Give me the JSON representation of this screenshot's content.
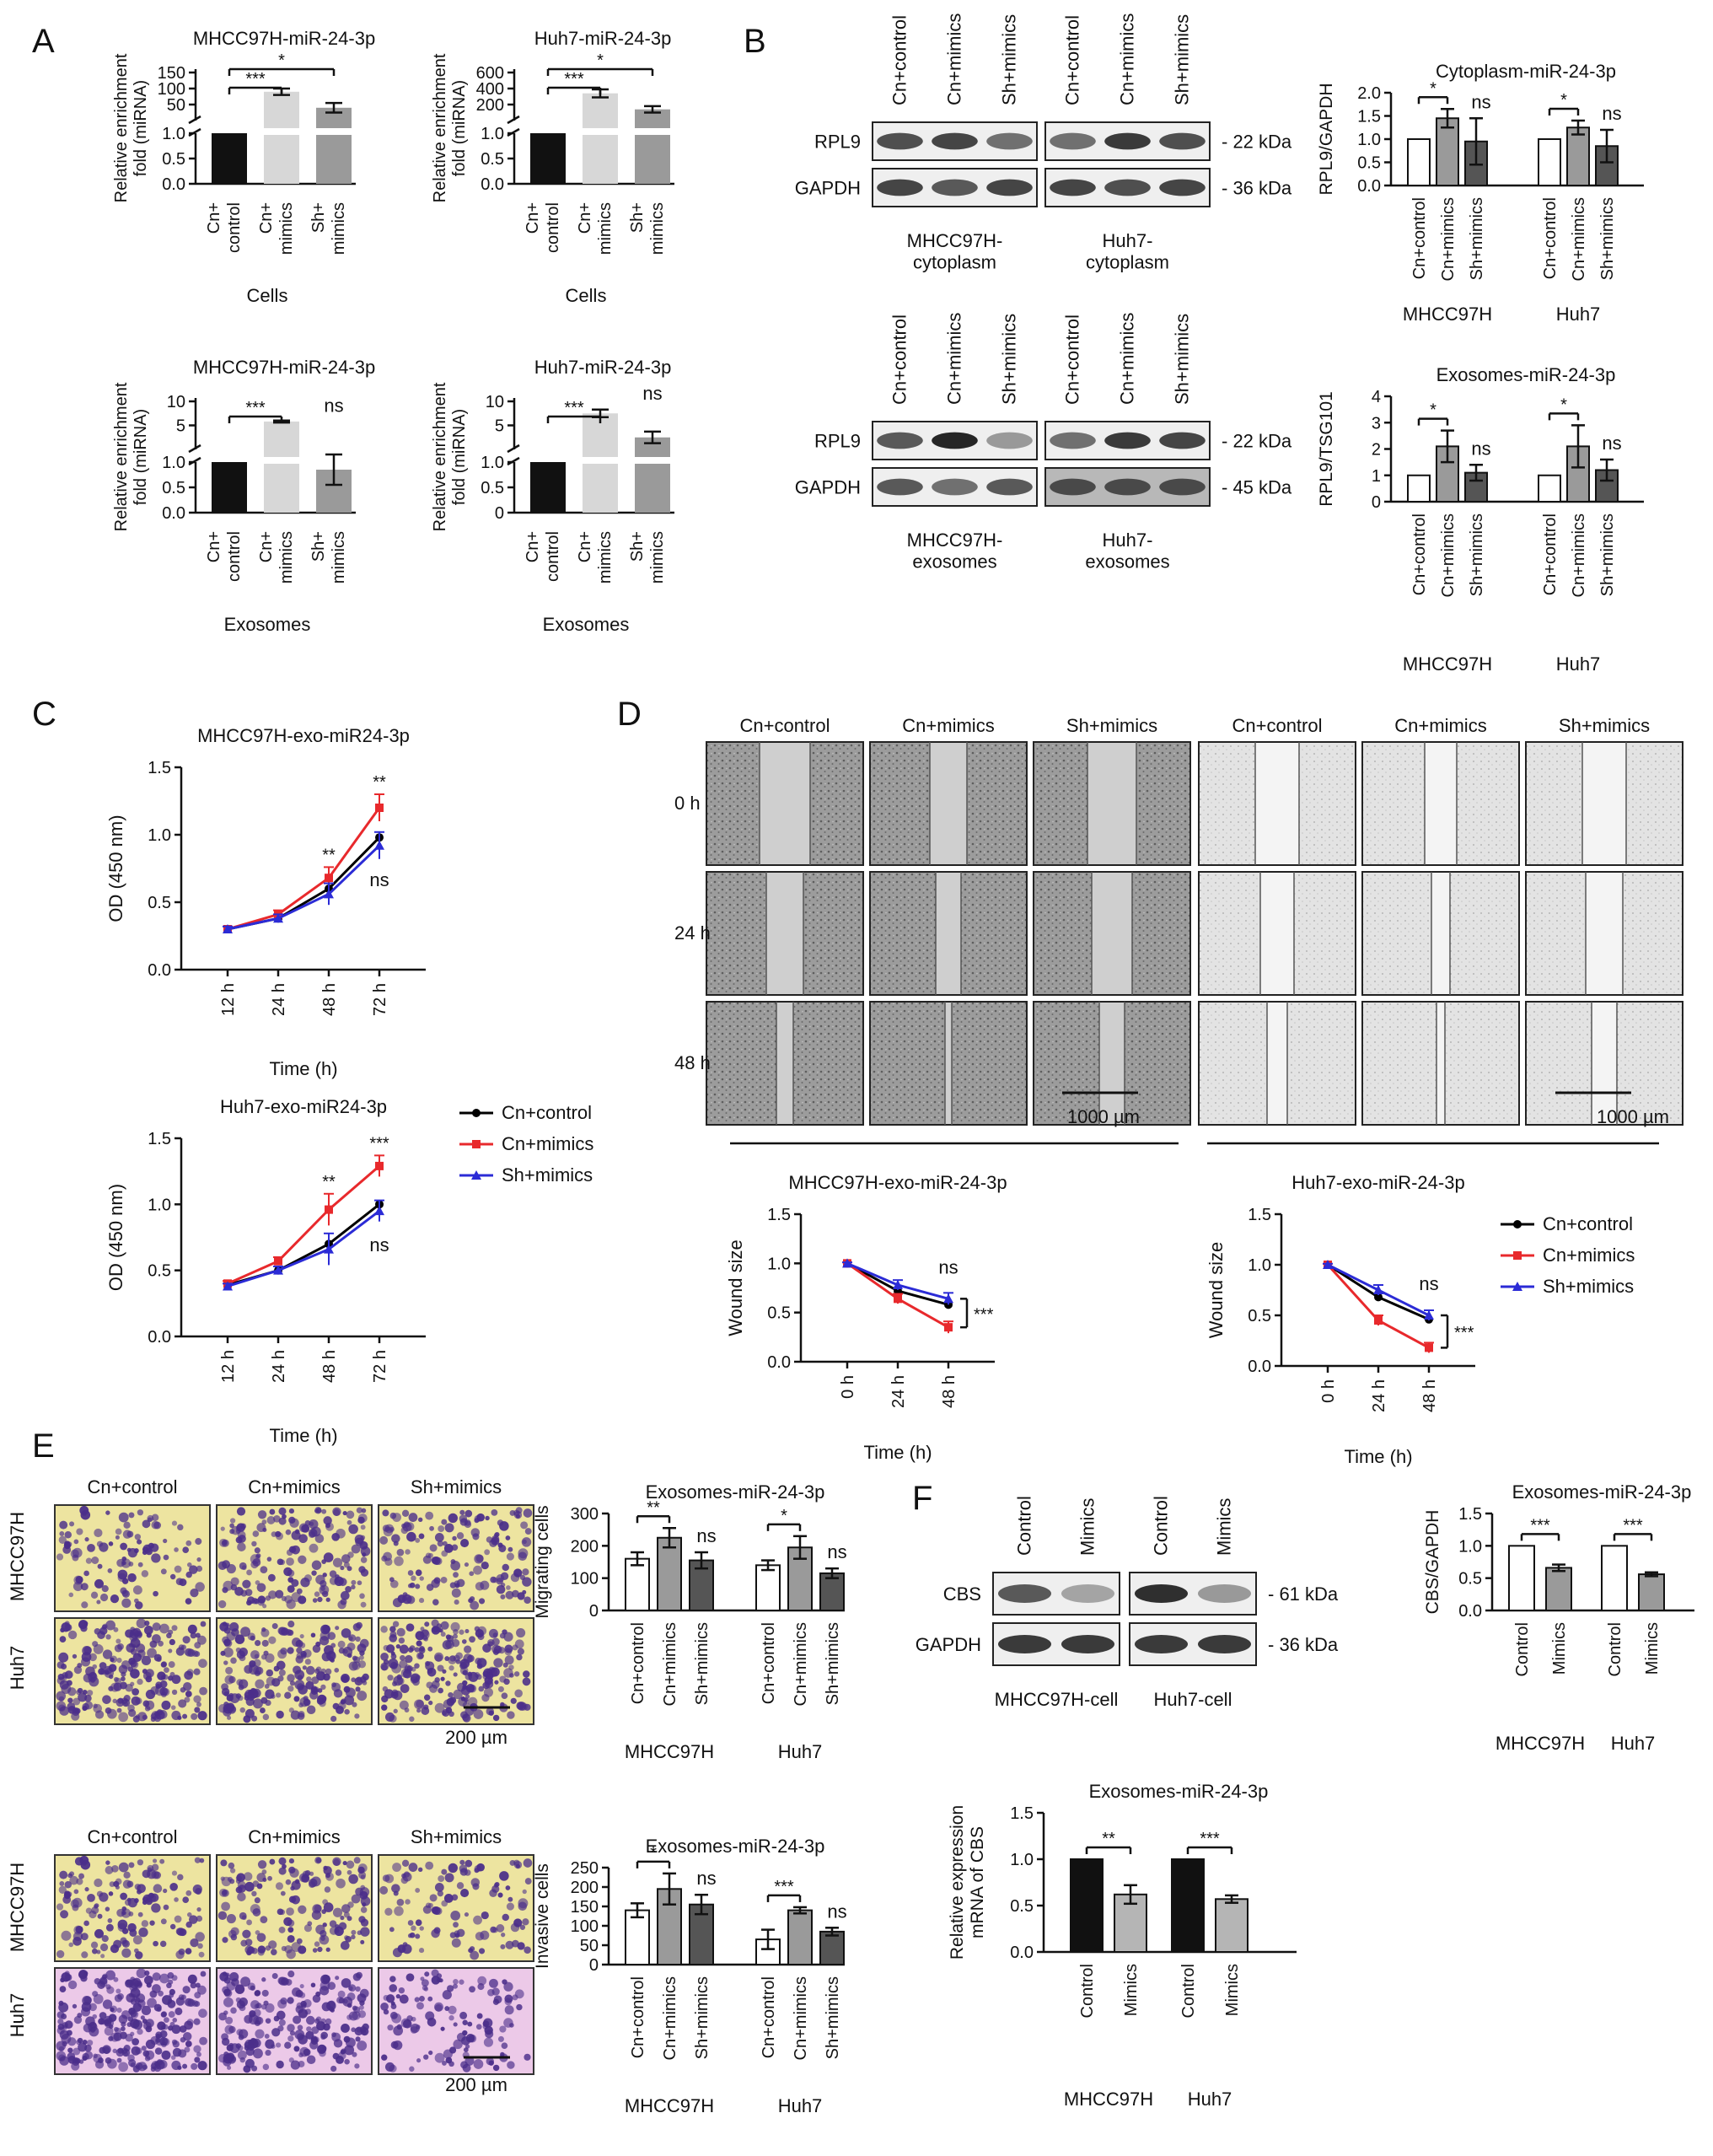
{
  "panel_letters": [
    "A",
    "B",
    "C",
    "D",
    "E",
    "F"
  ],
  "labels": {
    "cn_control": "Cn+control",
    "cn_mimics": "Cn+mimics",
    "sh_mimics": "Sh+mimics",
    "control": "Control",
    "mimics": "Mimics",
    "mhcc": "MHCC97H",
    "huh7": "Huh7",
    "h0": "0 h",
    "h24": "24 h",
    "h48": "48 h",
    "scale_1000": "1000 µm",
    "scale_200": "200 µm"
  },
  "colors": {
    "cn_control": "#000000",
    "cn_mimics": "#e8292c",
    "sh_mimics": "#2b2bd6",
    "bar_black": "#111111",
    "bar_light": "#d7d7d7",
    "bar_mid": "#9a9a9a",
    "bar_white": "#ffffff",
    "bar_darkgray": "#555555",
    "wound_bg": "#8f8f8f",
    "wound_bg_light": "#dadada",
    "transwell_yellow": "#ede4a0",
    "transwell_pink": "#ecc9e8",
    "cell_purple": "#4b2e8a"
  },
  "blots": [
    {
      "id": "b_cyto",
      "lanes": [
        "Cn+control",
        "Cn+mimics",
        "Sh+mimics",
        "Cn+control",
        "Cn+mimics",
        "Sh+mimics"
      ],
      "rows": [
        "RPL9",
        "GAPDH"
      ],
      "kda": [
        "22 kDa",
        "36 kDa"
      ],
      "groups": [
        "MHCC97H-\ncytoplasm",
        "Huh7-\ncytoplasm"
      ]
    },
    {
      "id": "b_exo",
      "lanes": [
        "Cn+control",
        "Cn+mimics",
        "Sh+mimics",
        "Cn+control",
        "Cn+mimics",
        "Sh+mimics"
      ],
      "rows": [
        "RPL9",
        "GAPDH"
      ],
      "kda": [
        "22 kDa",
        "45 kDa"
      ],
      "groups": [
        "MHCC97H-\nexosomes",
        "Huh7-\nexosomes"
      ]
    },
    {
      "id": "f_blot",
      "lanes": [
        "Control",
        "Mimics",
        "Control",
        "Mimics"
      ],
      "rows": [
        "CBS",
        "GAPDH"
      ],
      "kda": [
        "61 kDa",
        "36 kDa"
      ],
      "groups": [
        "MHCC97H-cell",
        "Huh7-cell"
      ]
    }
  ],
  "chart_data": [
    {
      "id": "A1",
      "type": "bar",
      "title": "MHCC97H-miR-24-3p",
      "ylabel": "Relative enrichment\nfold (miRNA)",
      "xlabel": "Cells",
      "categories": [
        "Cn+\ncontrol",
        "Cn+\nmimics",
        "Sh+\nmimics"
      ],
      "values": [
        1.0,
        90,
        40
      ],
      "errors": [
        0.02,
        10,
        15
      ],
      "ylim_lower": [
        0,
        1.0
      ],
      "ylim_upper": [
        0,
        150
      ],
      "yticks_lower": [
        "0.0",
        "0.5",
        "1.0"
      ],
      "yticks_upper": [
        "50",
        "100",
        "150"
      ],
      "sig": [
        {
          "a": 0,
          "b": 1,
          "label": "***"
        },
        {
          "a": 0,
          "b": 2,
          "label": "*"
        }
      ]
    },
    {
      "id": "A2",
      "type": "bar",
      "title": "Huh7-miR-24-3p",
      "ylabel": "Relative enrichment\nfold (miRNA)",
      "xlabel": "Cells",
      "categories": [
        "Cn+\ncontrol",
        "Cn+\nmimics",
        "Sh+\nmimics"
      ],
      "values": [
        1.0,
        340,
        140
      ],
      "errors": [
        0.02,
        50,
        40
      ],
      "ylim_lower": [
        0,
        1.0
      ],
      "ylim_upper": [
        0,
        600
      ],
      "yticks_lower": [
        "0.0",
        "0.5",
        "1.0"
      ],
      "yticks_upper": [
        "200",
        "400",
        "600"
      ],
      "sig": [
        {
          "a": 0,
          "b": 1,
          "label": "***"
        },
        {
          "a": 0,
          "b": 2,
          "label": "*"
        }
      ]
    },
    {
      "id": "A3",
      "type": "bar",
      "title": "MHCC97H-miR-24-3p",
      "ylabel": "Relative enrichment\nfold (miRNA)",
      "xlabel": "Exosomes",
      "categories": [
        "Cn+\ncontrol",
        "Cn+\nmimics",
        "Sh+\nmimics"
      ],
      "values": [
        1.0,
        5.8,
        0.85
      ],
      "errors": [
        0.02,
        0.2,
        0.3
      ],
      "ylim_lower": [
        0,
        1.0
      ],
      "ylim_upper": [
        0,
        10
      ],
      "yticks_lower": [
        "0.0",
        "0.5",
        "1.0"
      ],
      "yticks_upper": [
        "5",
        "10"
      ],
      "sig": [
        {
          "a": 0,
          "b": 1,
          "label": "***"
        }
      ],
      "ns": [
        2
      ]
    },
    {
      "id": "A4",
      "type": "bar",
      "title": "Huh7-miR-24-3p",
      "ylabel": "Relative enrichment\nfold (miRNA)",
      "xlabel": "Exosomes",
      "categories": [
        "Cn+\ncontrol",
        "Cn+\nmimics",
        "Sh+\nmimics"
      ],
      "values": [
        1.0,
        7.5,
        2.5
      ],
      "errors": [
        0.02,
        0.8,
        1.2
      ],
      "ylim_lower": [
        0,
        1.0
      ],
      "ylim_upper": [
        0,
        10
      ],
      "yticks_lower": [
        "0",
        "0.5",
        "1.0"
      ],
      "yticks_upper": [
        "5",
        "10"
      ],
      "sig": [
        {
          "a": 0,
          "b": 1,
          "label": "***"
        }
      ],
      "ns": [
        2
      ]
    },
    {
      "id": "B1",
      "type": "bar",
      "title": "Cytoplasm-miR-24-3p",
      "ylabel": "RPL9/GAPDH",
      "groups": [
        "MHCC97H",
        "Huh7"
      ],
      "categories": [
        "Cn+control",
        "Cn+mimics",
        "Sh+mimics"
      ],
      "values": [
        [
          1.0,
          1.45,
          0.95
        ],
        [
          1.0,
          1.25,
          0.85
        ]
      ],
      "errors": [
        [
          0,
          0.2,
          0.5
        ],
        [
          0,
          0.15,
          0.35
        ]
      ],
      "ylim": [
        0,
        2.0
      ],
      "yticks": [
        "0.0",
        "0.5",
        "1.0",
        "1.5",
        "2.0"
      ],
      "sig": [
        [
          {
            "a": 0,
            "b": 1,
            "label": "*"
          }
        ],
        [
          {
            "a": 0,
            "b": 1,
            "label": "*"
          }
        ]
      ],
      "ns": [
        [
          2
        ],
        [
          2
        ]
      ]
    },
    {
      "id": "B2",
      "type": "bar",
      "title": "Exosomes-miR-24-3p",
      "ylabel": "RPL9/TSG101",
      "groups": [
        "MHCC97H",
        "Huh7"
      ],
      "categories": [
        "Cn+control",
        "Cn+mimics",
        "Sh+mimics"
      ],
      "values": [
        [
          1.0,
          2.1,
          1.1
        ],
        [
          1.0,
          2.1,
          1.2
        ]
      ],
      "errors": [
        [
          0,
          0.6,
          0.3
        ],
        [
          0,
          0.8,
          0.4
        ]
      ],
      "ylim": [
        0,
        4
      ],
      "yticks": [
        "0",
        "1",
        "2",
        "3",
        "4"
      ],
      "sig": [
        [
          {
            "a": 0,
            "b": 1,
            "label": "*"
          }
        ],
        [
          {
            "a": 0,
            "b": 1,
            "label": "*"
          }
        ]
      ],
      "ns": [
        [
          2
        ],
        [
          2
        ]
      ]
    },
    {
      "id": "C1",
      "type": "line",
      "title": "MHCC97H-exo-miR24-3p",
      "xlabel": "Time (h)",
      "ylabel": "OD (450 nm)",
      "x": [
        "12 h",
        "24 h",
        "48 h",
        "72 h"
      ],
      "series": [
        {
          "name": "Cn+control",
          "values": [
            0.3,
            0.38,
            0.6,
            0.98
          ]
        },
        {
          "name": "Cn+mimics",
          "values": [
            0.3,
            0.41,
            0.68,
            1.2
          ]
        },
        {
          "name": "Sh+mimics",
          "values": [
            0.3,
            0.38,
            0.56,
            0.92
          ]
        }
      ],
      "errors": [
        0.02,
        0.03,
        0.08,
        0.1
      ],
      "ylim": [
        0,
        1.5
      ],
      "yticks": [
        "0.0",
        "0.5",
        "1.0",
        "1.5"
      ],
      "annotations": [
        {
          "x": 2,
          "label": "**"
        },
        {
          "x": 3,
          "label": "**"
        },
        {
          "x": 3,
          "label": "ns",
          "below": true
        }
      ]
    },
    {
      "id": "C2",
      "type": "line",
      "title": "Huh7-exo-miR24-3p",
      "xlabel": "Time (h)",
      "ylabel": "OD (450 nm)",
      "x": [
        "12 h",
        "24 h",
        "48 h",
        "72 h"
      ],
      "series": [
        {
          "name": "Cn+control",
          "values": [
            0.39,
            0.5,
            0.7,
            1.0
          ]
        },
        {
          "name": "Cn+mimics",
          "values": [
            0.4,
            0.57,
            0.96,
            1.29
          ]
        },
        {
          "name": "Sh+mimics",
          "values": [
            0.38,
            0.5,
            0.66,
            0.95
          ]
        }
      ],
      "errors": [
        0.02,
        0.03,
        0.12,
        0.08
      ],
      "ylim": [
        0,
        1.5
      ],
      "yticks": [
        "0.0",
        "0.5",
        "1.0",
        "1.5"
      ],
      "legend": [
        "Cn+control",
        "Cn+mimics",
        "Sh+mimics"
      ],
      "annotations": [
        {
          "x": 2,
          "label": "**"
        },
        {
          "x": 3,
          "label": "***"
        },
        {
          "x": 3,
          "label": "ns",
          "below": true
        }
      ]
    },
    {
      "id": "D1",
      "type": "line",
      "title": "MHCC97H-exo-miR-24-3p",
      "xlabel": "Time (h)",
      "ylabel": "Wound size",
      "x": [
        "0 h",
        "24 h",
        "48 h"
      ],
      "series": [
        {
          "name": "Cn+control",
          "values": [
            1.0,
            0.72,
            0.58
          ]
        },
        {
          "name": "Cn+mimics",
          "values": [
            1.0,
            0.64,
            0.35
          ]
        },
        {
          "name": "Sh+mimics",
          "values": [
            1.0,
            0.78,
            0.64
          ]
        }
      ],
      "errors": [
        0.01,
        0.05,
        0.06
      ],
      "ylim": [
        0,
        1.5
      ],
      "yticks": [
        "0.0",
        "0.5",
        "1.0",
        "1.5"
      ],
      "annotations": [
        {
          "x": 2,
          "label": "ns"
        },
        {
          "x": 2,
          "label": "***",
          "bracket": true
        }
      ]
    },
    {
      "id": "D2",
      "type": "line",
      "title": "Huh7-exo-miR-24-3p",
      "xlabel": "Time (h)",
      "ylabel": "Wound size",
      "x": [
        "0 h",
        "24 h",
        "48 h"
      ],
      "series": [
        {
          "name": "Cn+control",
          "values": [
            1.0,
            0.68,
            0.46
          ]
        },
        {
          "name": "Cn+mimics",
          "values": [
            1.0,
            0.45,
            0.18
          ]
        },
        {
          "name": "Sh+mimics",
          "values": [
            1.0,
            0.75,
            0.5
          ]
        }
      ],
      "errors": [
        0.01,
        0.05,
        0.05
      ],
      "ylim": [
        0,
        1.5
      ],
      "yticks": [
        "0.0",
        "0.5",
        "1.0",
        "1.5"
      ],
      "legend": [
        "Cn+control",
        "Cn+mimics",
        "Sh+mimics"
      ],
      "annotations": [
        {
          "x": 2,
          "label": "ns"
        },
        {
          "x": 2,
          "label": "***",
          "bracket": true
        }
      ]
    },
    {
      "id": "E1",
      "type": "bar",
      "title": "Exosomes-miR-24-3p",
      "ylabel": "Migrating cells",
      "groups": [
        "MHCC97H",
        "Huh7"
      ],
      "categories": [
        "Cn+control",
        "Cn+mimics",
        "Sh+mimics"
      ],
      "values": [
        [
          160,
          225,
          155
        ],
        [
          140,
          195,
          115
        ]
      ],
      "errors": [
        [
          20,
          30,
          25
        ],
        [
          15,
          35,
          15
        ]
      ],
      "ylim": [
        0,
        300
      ],
      "yticks": [
        "0",
        "100",
        "200",
        "300"
      ],
      "sig": [
        [
          {
            "a": 0,
            "b": 1,
            "label": "**"
          }
        ],
        [
          {
            "a": 0,
            "b": 1,
            "label": "*"
          }
        ]
      ],
      "ns": [
        [
          2
        ],
        [
          2
        ]
      ]
    },
    {
      "id": "E2",
      "type": "bar",
      "title": "Exosomes-miR-24-3p",
      "ylabel": "Invasive cells",
      "groups": [
        "MHCC97H",
        "Huh7"
      ],
      "categories": [
        "Cn+control",
        "Cn+mimics",
        "Sh+mimics"
      ],
      "values": [
        [
          140,
          195,
          155
        ],
        [
          65,
          140,
          85
        ]
      ],
      "errors": [
        [
          18,
          40,
          25
        ],
        [
          25,
          8,
          10
        ]
      ],
      "ylim": [
        0,
        250
      ],
      "yticks": [
        "0",
        "50",
        "100",
        "150",
        "200",
        "250"
      ],
      "sig": [
        [
          {
            "a": 0,
            "b": 1,
            "label": "*"
          }
        ],
        [
          {
            "a": 0,
            "b": 1,
            "label": "***"
          }
        ]
      ],
      "ns": [
        [
          2
        ],
        [
          2
        ]
      ]
    },
    {
      "id": "F1",
      "type": "bar",
      "title": "Exosomes-miR-24-3p",
      "ylabel": "CBS/GAPDH",
      "groups": [
        "MHCC97H",
        "Huh7"
      ],
      "categories": [
        "Control",
        "Mimics"
      ],
      "values": [
        [
          1.0,
          0.66
        ],
        [
          1.0,
          0.56
        ]
      ],
      "errors": [
        [
          0,
          0.05
        ],
        [
          0,
          0.03
        ]
      ],
      "ylim": [
        0,
        1.5
      ],
      "yticks": [
        "0.0",
        "0.5",
        "1.0",
        "1.5"
      ],
      "sig": [
        [
          {
            "a": 0,
            "b": 1,
            "label": "***"
          }
        ],
        [
          {
            "a": 0,
            "b": 1,
            "label": "***"
          }
        ]
      ]
    },
    {
      "id": "F2",
      "type": "bar",
      "title": "Exosomes-miR-24-3p",
      "ylabel": "Relative expression\nmRNA of CBS",
      "groups": [
        "MHCC97H",
        "Huh7"
      ],
      "categories": [
        "Control",
        "Mimics"
      ],
      "values": [
        [
          1.0,
          0.62
        ],
        [
          1.0,
          0.57
        ]
      ],
      "errors": [
        [
          0,
          0.1
        ],
        [
          0,
          0.04
        ]
      ],
      "ylim": [
        0,
        1.5
      ],
      "yticks": [
        "0.0",
        "0.5",
        "1.0",
        "1.5"
      ],
      "sig": [
        [
          {
            "a": 0,
            "b": 1,
            "label": "**"
          }
        ],
        [
          {
            "a": 0,
            "b": 1,
            "label": "***"
          }
        ]
      ]
    }
  ]
}
